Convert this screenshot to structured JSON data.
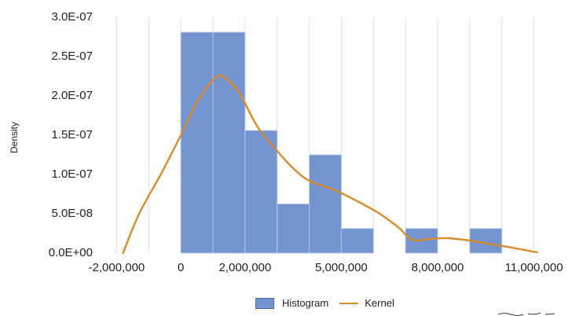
{
  "chart_data": {
    "type": "bar",
    "ylabel": "Density",
    "xlim": [
      -2500000,
      11500000
    ],
    "ylim": [
      0,
      3e-07
    ],
    "y_ticks": [
      "0.0E+00",
      "5.0E-08",
      "1.0E-07",
      "1.5E-07",
      "2.0E-07",
      "2.5E-07",
      "3.0E-07"
    ],
    "y_tick_values": [
      0,
      5e-08,
      1e-07,
      1.5e-07,
      2e-07,
      2.5e-07,
      3e-07
    ],
    "x_ticks": [
      "-2,000,000",
      "0",
      "2,000,000",
      "5,000,000",
      "8,000,000",
      "11,000,000"
    ],
    "x_tick_values": [
      -2000000,
      0,
      2000000,
      5000000,
      8000000,
      11000000
    ],
    "grid_x": true,
    "legend_position": "bottom",
    "series": [
      {
        "name": "Histogram",
        "type": "bar",
        "color": "#7494cf",
        "bins": [
          {
            "x0": 0,
            "x1": 1000000,
            "value": 2.81e-07
          },
          {
            "x0": 1000000,
            "x1": 2000000,
            "value": 2.81e-07
          },
          {
            "x0": 2000000,
            "x1": 3000000,
            "value": 1.56e-07
          },
          {
            "x0": 3000000,
            "x1": 4000000,
            "value": 6.25e-08
          },
          {
            "x0": 4000000,
            "x1": 5000000,
            "value": 1.25e-07
          },
          {
            "x0": 5000000,
            "x1": 6000000,
            "value": 3.13e-08
          },
          {
            "x0": 6000000,
            "x1": 7000000,
            "value": 0
          },
          {
            "x0": 7000000,
            "x1": 8000000,
            "value": 3.13e-08
          },
          {
            "x0": 8000000,
            "x1": 9000000,
            "value": 0
          },
          {
            "x0": 9000000,
            "x1": 10000000,
            "value": 3.13e-08
          }
        ]
      },
      {
        "name": "Kernel",
        "type": "line",
        "color": "#d98a2c",
        "x": [
          -1800000,
          -1300000,
          -600000,
          0,
          500000,
          1000000,
          1300000,
          1800000,
          2400000,
          3000000,
          3500000,
          4000000,
          4800000,
          5500000,
          6200000,
          6800000,
          7200000,
          7800000,
          8300000,
          9000000,
          9700000,
          10300000,
          11100000
        ],
        "y": [
          0,
          5e-08,
          1.02e-07,
          1.5e-07,
          1.92e-07,
          2.2e-07,
          2.25e-07,
          2.05e-07,
          1.6e-07,
          1.3e-07,
          1.08e-07,
          9.2e-08,
          8e-08,
          6.6e-08,
          5e-08,
          3.2e-08,
          1.7e-08,
          1.8e-08,
          1.9e-08,
          1.6e-08,
          1.1e-08,
          7e-09,
          1e-09
        ]
      }
    ]
  },
  "legend": {
    "histogram_label": "Histogram",
    "kernel_label": "Kernel"
  }
}
